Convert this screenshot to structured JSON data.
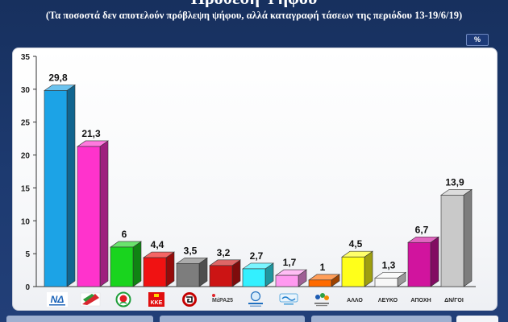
{
  "theme": {
    "background": "#1b3567",
    "panel_border": "#c7ccd8",
    "badge_bg": "#1d3a78"
  },
  "header": {
    "unit_badge": "%"
  },
  "chart_data": {
    "type": "bar",
    "title": "Πρόθεση Ψήφου",
    "subtitle": "(Τα ποσοστά δεν αποτελούν πρόβλεψη ψήφου, αλλά καταγραφή τάσεων της περιόδου 13-19/6/19)",
    "xlabel": "",
    "ylabel": "",
    "ylim": [
      0,
      35
    ],
    "yticks": [
      0,
      5,
      10,
      15,
      20,
      25,
      30,
      35
    ],
    "grid": false,
    "categories": [
      {
        "label": "",
        "logo": "nd-logo",
        "logo_text": "ΝΔ"
      },
      {
        "label": "",
        "logo": "syriza-logo"
      },
      {
        "label": "",
        "logo": "kinal-logo"
      },
      {
        "label": "",
        "logo": "kke-logo",
        "logo_text": "ΚΚΕ"
      },
      {
        "label": "",
        "logo": "golden-dawn-logo"
      },
      {
        "label": "",
        "logo": "mera25-logo",
        "logo_text": "ΜέΡΑ25"
      },
      {
        "label": "",
        "logo": "elliniki-lysi-logo"
      },
      {
        "label": "",
        "logo": "potami-logo"
      },
      {
        "label": "",
        "logo": "enosi-kentroon-logo"
      },
      {
        "label": "ΑΛΛΟ"
      },
      {
        "label": "ΛΕΥΚΟ"
      },
      {
        "label": "ΑΠΟΧΗ"
      },
      {
        "label": "ΔΝ/ΓΟΙ"
      }
    ],
    "values": [
      29.8,
      21.3,
      6,
      4.4,
      3.5,
      3.2,
      2.7,
      1.7,
      1,
      4.5,
      1.3,
      6.7,
      13.9
    ],
    "value_labels": [
      "29,8",
      "21,3",
      "6",
      "4,4",
      "3,5",
      "3,2",
      "2,7",
      "1,7",
      "1",
      "4,5",
      "1,3",
      "6,7",
      "13,9"
    ],
    "colors": [
      "#1ca3e6",
      "#ff33cc",
      "#19d41e",
      "#f01212",
      "#7d7d7d",
      "#cc1414",
      "#33f0ff",
      "#ff99f0",
      "#ff6a00",
      "#ffff1a",
      "#f7f7f7",
      "#d1149e",
      "#c9c9c9"
    ]
  }
}
